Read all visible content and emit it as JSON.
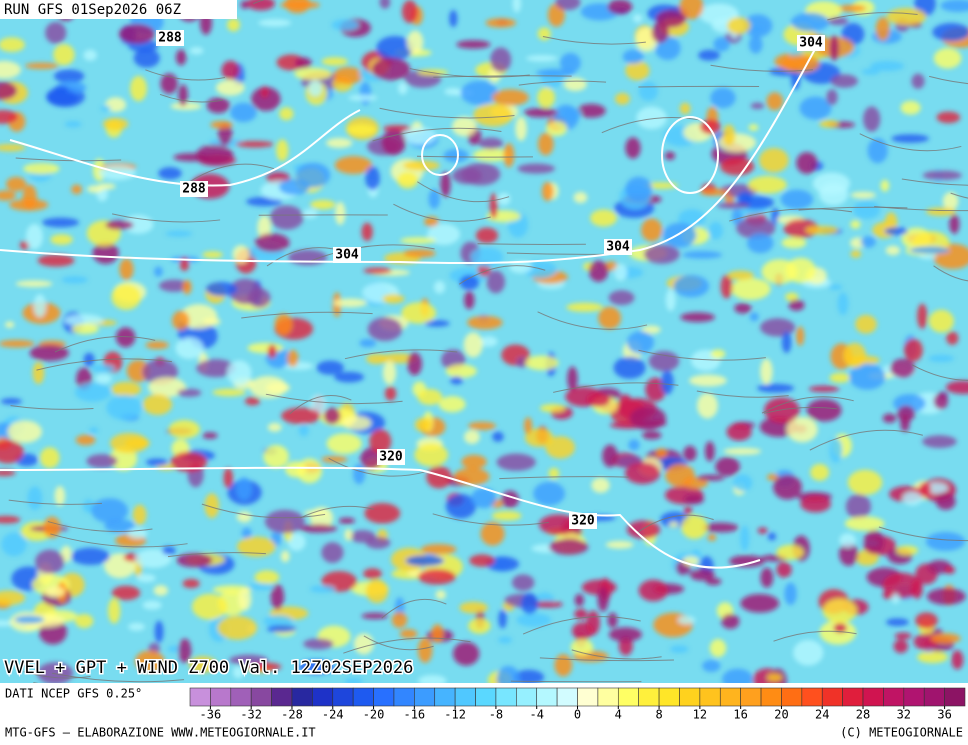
{
  "header": {
    "run": "RUN GFS 01Sep2026 06Z"
  },
  "map": {
    "contour_labels": [
      288,
      288,
      304,
      304,
      304,
      320,
      320
    ]
  },
  "footer": {
    "title": "VVEL + GPT + WIND Z700 Val. 12Z02SEP2026",
    "source": "DATI NCEP GFS 0.25°",
    "credit_left": "MTG-GFS – ELABORAZIONE WWW.METEOGIORNALE.IT",
    "credit_right": "(C) METEOGIORNALE"
  },
  "colorbar": {
    "lim": [
      -38,
      38
    ],
    "ticks": [
      -36,
      -32,
      -28,
      -24,
      -20,
      -16,
      -12,
      -8,
      -4,
      0,
      4,
      8,
      12,
      16,
      20,
      24,
      28,
      32,
      36
    ],
    "colors": [
      "#c890dc",
      "#b878cc",
      "#a060b8",
      "#8848a0",
      "#5a2890",
      "#2828a0",
      "#1e32c8",
      "#1e46dc",
      "#1e5af0",
      "#2870ff",
      "#3286ff",
      "#3c9cff",
      "#46b4ff",
      "#50c8ff",
      "#5ad8ff",
      "#78e6ff",
      "#96f0ff",
      "#b4f8ff",
      "#d2fcff",
      "#ffffd2",
      "#ffffa0",
      "#ffff64",
      "#fff03c",
      "#ffe628",
      "#ffd21e",
      "#ffc31e",
      "#ffb41e",
      "#ffa01e",
      "#ff8c14",
      "#ff6e14",
      "#ff501e",
      "#f03228",
      "#e01e3c",
      "#d01450",
      "#c01464",
      "#b01470",
      "#a0146e",
      "#8c1464"
    ]
  }
}
